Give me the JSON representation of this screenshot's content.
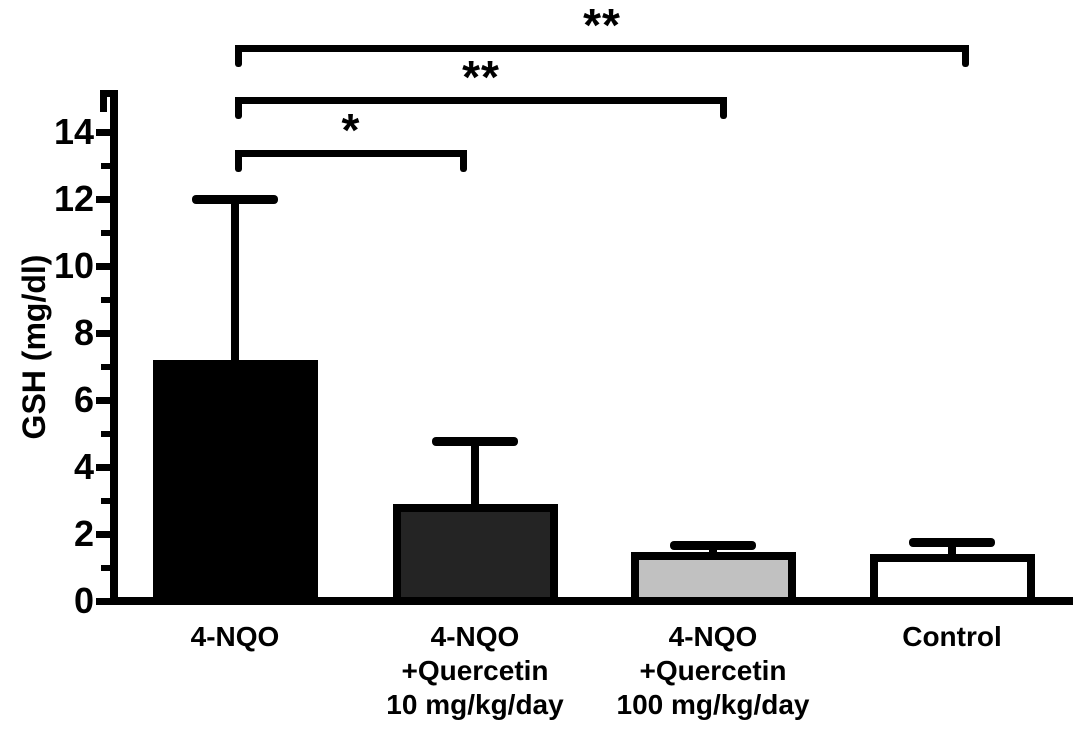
{
  "chart_data": {
    "type": "bar",
    "title": "",
    "xlabel": "",
    "ylabel": "GSH (mg/dl)",
    "ylim": [
      0,
      15
    ],
    "grid": false,
    "legend": false,
    "background": "#ffffff",
    "axis_color": "#000000",
    "ytick_values": [
      0,
      2,
      4,
      6,
      8,
      10,
      12,
      14
    ],
    "ytick_labels": [
      "0",
      "2",
      "4",
      "6",
      "8",
      "10",
      "12",
      "14"
    ],
    "yminor_values": [
      1,
      3,
      5,
      7,
      9,
      11,
      13
    ],
    "categories": [
      [
        "4-NQO"
      ],
      [
        "4-NQO",
        "+Quercetin",
        "10 mg/kg/day"
      ],
      [
        "4-NQO",
        "+Quercetin",
        "100 mg/kg/day"
      ],
      [
        "Control"
      ]
    ],
    "series": [
      {
        "name": "GSH",
        "means": [
          7.2,
          2.9,
          1.45,
          1.4
        ],
        "sd_upper": [
          4.8,
          1.85,
          0.2,
          0.35
        ]
      }
    ],
    "bar_fills": [
      "#000000",
      "#242424",
      "#c1c1c1",
      "#ffffff"
    ],
    "bar_border_color": "#000000",
    "significance": [
      {
        "from_index": 0,
        "to_index": 1,
        "label": "*"
      },
      {
        "from_index": 0,
        "to_index": 2,
        "label": "**"
      },
      {
        "from_index": 0,
        "to_index": 3,
        "label": "**"
      }
    ]
  }
}
